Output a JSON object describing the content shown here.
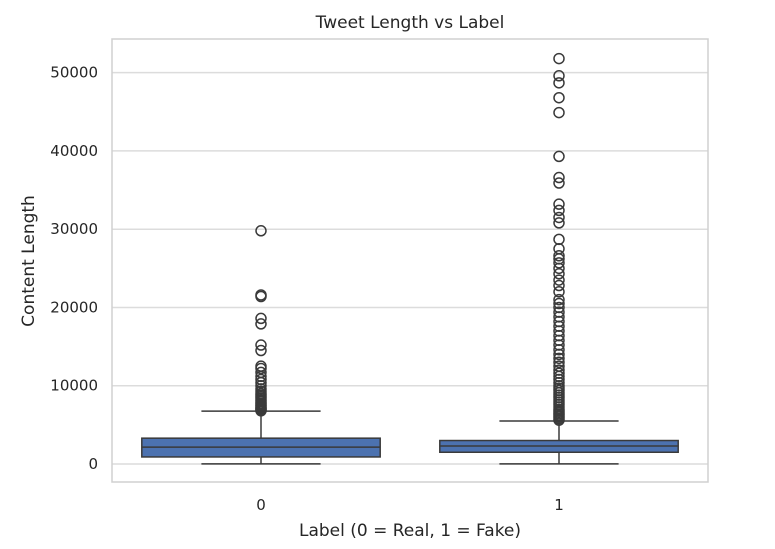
{
  "chart_data": {
    "type": "boxplot",
    "title": "Tweet Length vs Label",
    "xlabel": "Label (0 = Real, 1 = Fake)",
    "ylabel": "Content Length",
    "categories": [
      "0",
      "1"
    ],
    "ylim": [
      -2300,
      54300
    ],
    "yticks": [
      0,
      10000,
      20000,
      30000,
      40000,
      50000
    ],
    "grid": true,
    "colors": {
      "box_fill": "#4c72b0",
      "line": "#3a3a3a",
      "grid": "#dcdcdc",
      "frame": "#d0d0d0",
      "text": "#262626"
    },
    "boxes": [
      {
        "category": "0",
        "whisker_low": 10,
        "q1": 900,
        "median": 2150,
        "q3": 3300,
        "whisker_high": 6750,
        "outliers": [
          6800,
          6900,
          7000,
          7100,
          7200,
          7350,
          7500,
          7650,
          7800,
          8000,
          8200,
          8400,
          8600,
          8800,
          9000,
          9300,
          9600,
          10000,
          10400,
          10800,
          11200,
          11700,
          12200,
          12500,
          14500,
          15200,
          17900,
          18600,
          21400,
          21600,
          29800
        ]
      },
      {
        "category": "1",
        "whisker_low": 10,
        "q1": 1500,
        "median": 2300,
        "q3": 3000,
        "whisker_high": 5500,
        "outliers": [
          5600,
          5800,
          6000,
          6200,
          6400,
          6600,
          6800,
          7000,
          7300,
          7600,
          7900,
          8200,
          8500,
          8800,
          9100,
          9400,
          9700,
          10000,
          10400,
          10800,
          11200,
          11600,
          12000,
          12500,
          13000,
          13500,
          14000,
          14600,
          15200,
          15800,
          16400,
          17000,
          17600,
          18200,
          18800,
          19400,
          20000,
          20500,
          21000,
          22000,
          22800,
          23500,
          24300,
          25000,
          25700,
          26200,
          26600,
          27500,
          28700,
          30800,
          31500,
          32400,
          33200,
          35900,
          36600,
          39300,
          44900,
          46800,
          48700,
          49600,
          51800
        ]
      }
    ]
  }
}
